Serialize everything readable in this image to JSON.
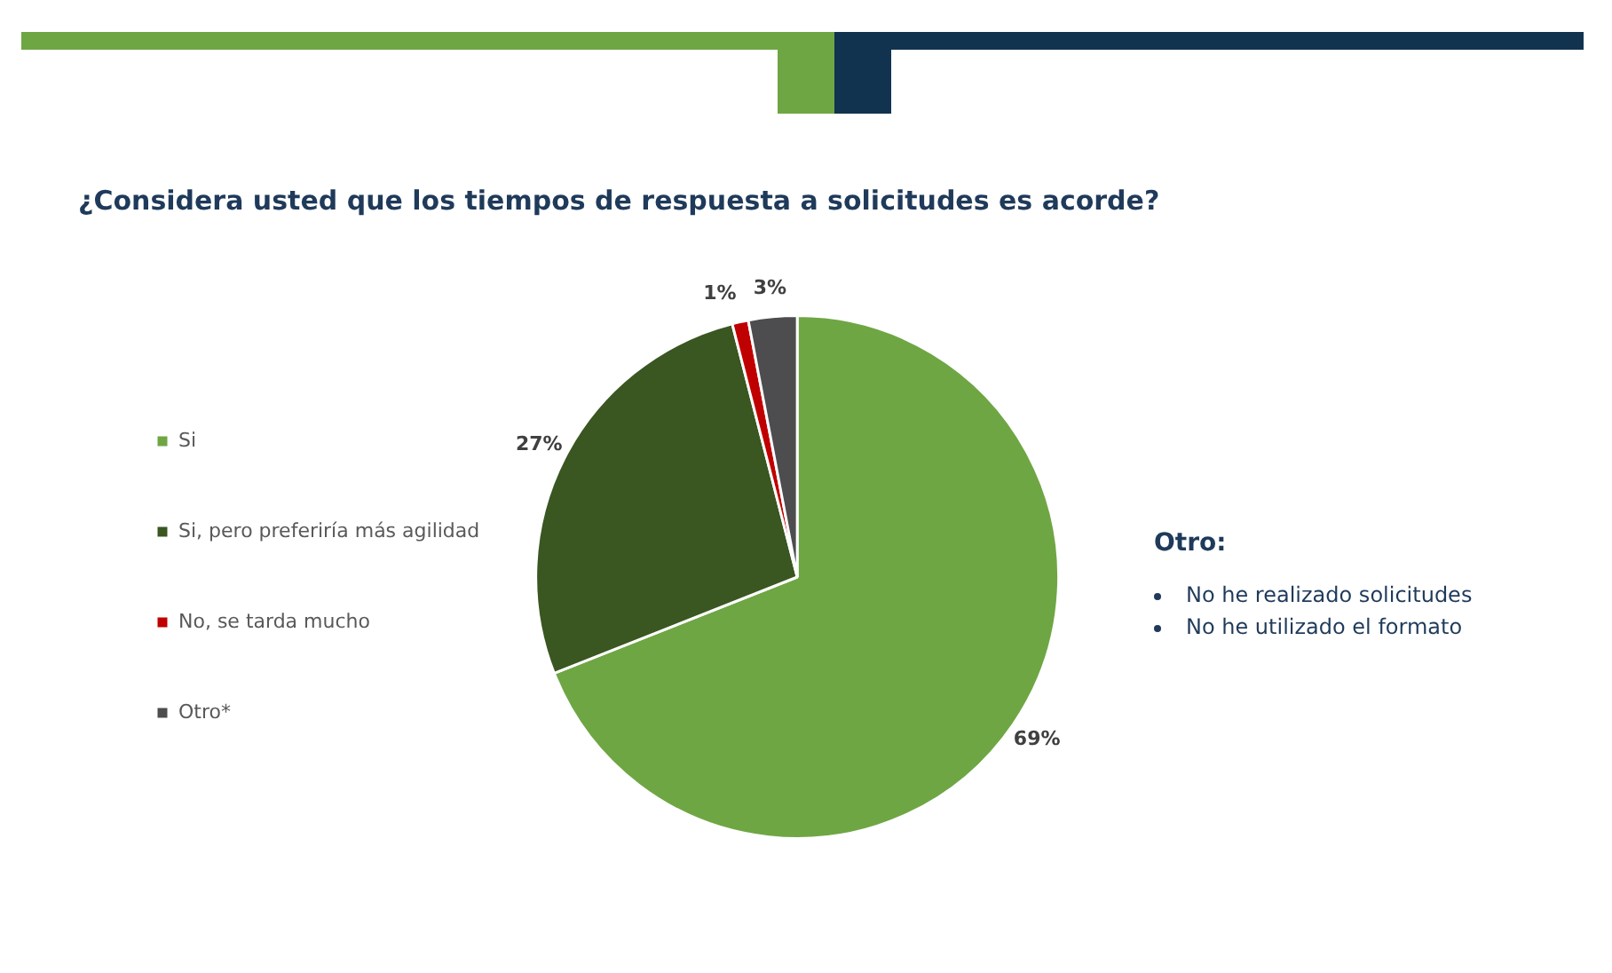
{
  "chart_data": {
    "type": "pie",
    "title": "¿Considera usted que los tiempos de respuesta a solicitudes es acorde?",
    "categories": [
      "Si",
      "Si, pero preferiría más agilidad",
      "No, se tarda mucho",
      "Otro*"
    ],
    "values": [
      69,
      27,
      1,
      3
    ],
    "colors": [
      "#6fa644",
      "#3a5621",
      "#c00000",
      "#4d4d4f"
    ],
    "value_labels": [
      "69%",
      "27%",
      "1%",
      "3%"
    ],
    "legend": "left",
    "annotations": [
      "Otro:",
      "No he realizado solicitudes",
      "No he utilizado el formato"
    ]
  }
}
